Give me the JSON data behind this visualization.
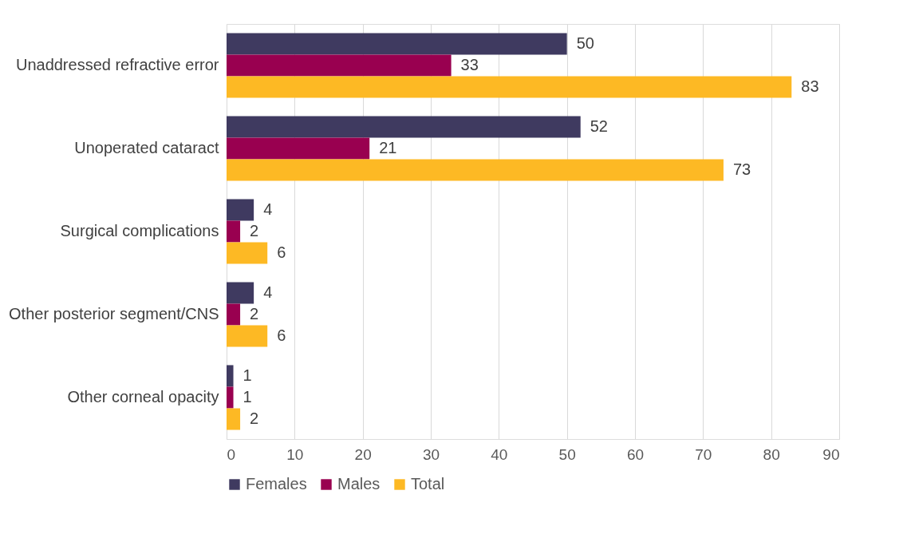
{
  "chart_data": {
    "type": "bar",
    "orientation": "horizontal",
    "categories": [
      "Unaddressed refractive error",
      "Unoperated cataract",
      "Surgical complications",
      "Other posterior segment/CNS",
      "Other corneal opacity"
    ],
    "series": [
      {
        "name": "Females",
        "color": "#3f3a60",
        "values": [
          50,
          52,
          4,
          4,
          1
        ]
      },
      {
        "name": "Males",
        "color": "#990050",
        "values": [
          33,
          21,
          2,
          2,
          1
        ]
      },
      {
        "name": "Total",
        "color": "#fdb924",
        "values": [
          83,
          73,
          6,
          6,
          2
        ]
      }
    ],
    "xlim": [
      0,
      90
    ],
    "xticks": [
      0,
      10,
      20,
      30,
      40,
      50,
      60,
      70,
      80,
      90
    ],
    "grid": "x",
    "legend": "bottom",
    "data_labels": true
  }
}
